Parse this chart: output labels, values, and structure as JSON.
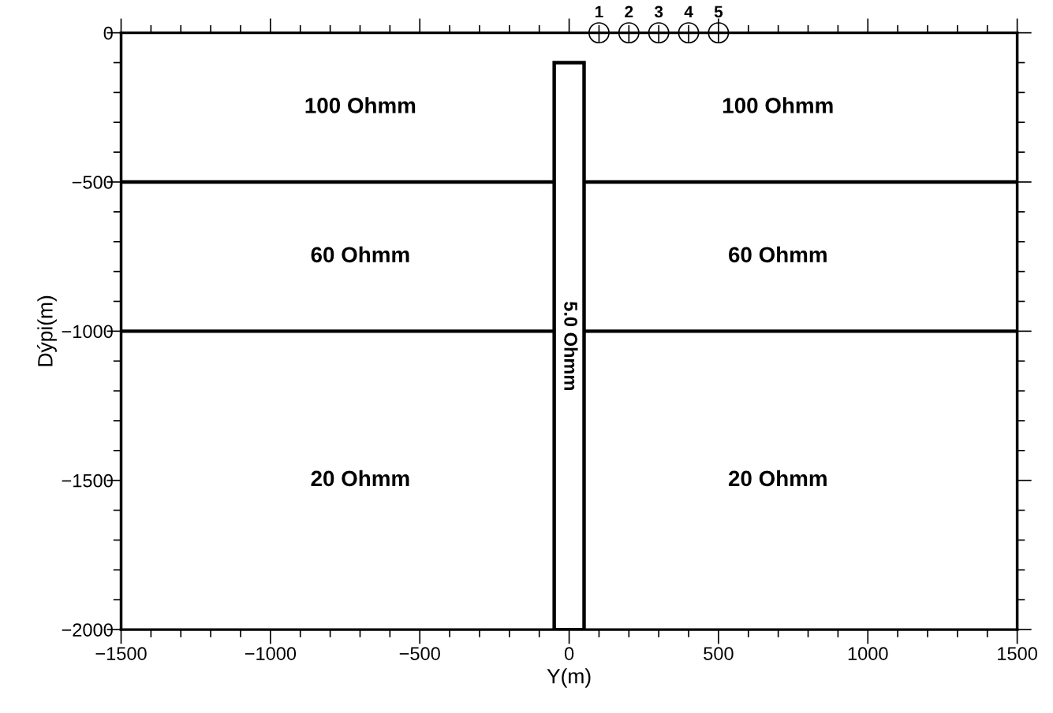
{
  "chart_data": {
    "type": "scatter",
    "xlabel": "Y(m)",
    "ylabel": "Dýpi(m)",
    "xlim": [
      -1500,
      1500
    ],
    "ylim": [
      -2000,
      0
    ],
    "xticks": [
      -1500,
      {
        "value": -1400,
        "label": null
      },
      {
        "value": -1300,
        "label": null
      },
      {
        "value": -1200,
        "label": null
      },
      {
        "value": -1100,
        "label": null
      },
      -1000,
      {
        "value": -900,
        "label": null
      },
      {
        "value": -800,
        "label": null
      },
      {
        "value": -700,
        "label": null
      },
      {
        "value": -600,
        "label": null
      },
      -500,
      {
        "value": -400,
        "label": null
      },
      {
        "value": -300,
        "label": null
      },
      {
        "value": -200,
        "label": null
      },
      {
        "value": -100,
        "label": null
      },
      0,
      {
        "value": 100,
        "label": null
      },
      {
        "value": 200,
        "label": null
      },
      {
        "value": 300,
        "label": null
      },
      {
        "value": 400,
        "label": null
      },
      500,
      {
        "value": 600,
        "label": null
      },
      {
        "value": 700,
        "label": null
      },
      {
        "value": 800,
        "label": null
      },
      {
        "value": 900,
        "label": null
      },
      1000,
      {
        "value": 1100,
        "label": null
      },
      {
        "value": 1200,
        "label": null
      },
      {
        "value": 1300,
        "label": null
      },
      {
        "value": 1400,
        "label": null
      },
      1500
    ],
    "yticks": [
      -2000,
      {
        "value": -1900,
        "label": null
      },
      {
        "value": -1800,
        "label": null
      },
      {
        "value": -1700,
        "label": null
      },
      {
        "value": -1600,
        "label": null
      },
      -1500,
      {
        "value": -1400,
        "label": null
      },
      {
        "value": -1300,
        "label": null
      },
      {
        "value": -1200,
        "label": null
      },
      {
        "value": -1100,
        "label": null
      },
      -1000,
      {
        "value": -900,
        "label": null
      },
      {
        "value": -800,
        "label": null
      },
      {
        "value": -700,
        "label": null
      },
      {
        "value": -600,
        "label": null
      },
      -500,
      {
        "value": -400,
        "label": null
      },
      {
        "value": -300,
        "label": null
      },
      {
        "value": -200,
        "label": null
      },
      {
        "value": -100,
        "label": null
      },
      0
    ],
    "grid": false,
    "series": [
      {
        "type": "bar",
        "name": "5.0 Ohmm",
        "color": "#ffffff",
        "x": [
          0
        ],
        "base": [
          -100
        ],
        "values": [
          -1900
        ]
      },
      {
        "color": "#000000",
        "marker": "circle",
        "x": [
          100,
          200,
          300,
          400,
          500
        ],
        "values": [
          0,
          0,
          0,
          0,
          0
        ]
      }
    ],
    "ref_lines": [
      {
        "axis": "y",
        "value": -500,
        "color": "#000000",
        "line_style": "solid"
      },
      {
        "axis": "y",
        "value": -1000,
        "color": "#000000",
        "line_style": "solid"
      }
    ],
    "annotations": [
      {
        "text": "1",
        "x": 100,
        "y": 0
      },
      {
        "text": "2",
        "x": 200,
        "y": 0
      },
      {
        "text": "3",
        "x": 300,
        "y": 0
      },
      {
        "text": "4",
        "x": 400,
        "y": 0
      },
      {
        "text": "5",
        "x": 500,
        "y": 0
      },
      "100 Ohmm",
      "100 Ohmm",
      "60 Ohmm",
      "60 Ohmm",
      "20 Ohmm",
      "20 Ohmm"
    ]
  }
}
